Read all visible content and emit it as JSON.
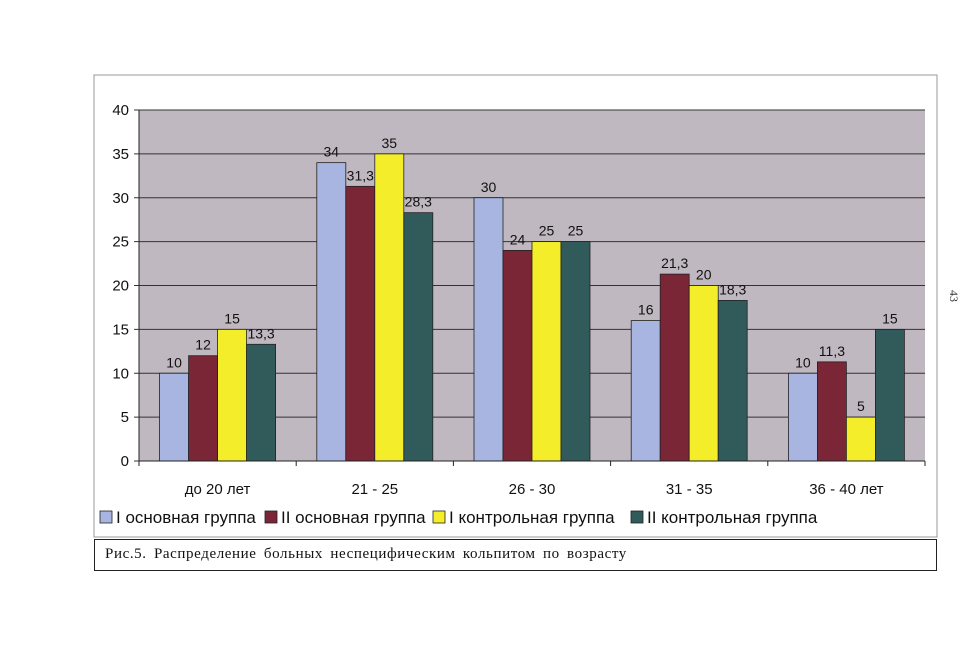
{
  "chart_data": {
    "type": "bar",
    "categories": [
      "до 20 лет",
      "21 - 25",
      "26 - 30",
      "31 - 35",
      "36 - 40 лет"
    ],
    "series": [
      {
        "name": "I основная группа",
        "values": [
          10,
          34,
          30,
          16,
          10
        ],
        "labels": [
          "10",
          "34",
          "30",
          "16",
          "10"
        ],
        "color": "#a7b5e0"
      },
      {
        "name": "II основная группа",
        "values": [
          12,
          31.3,
          24,
          21.3,
          11.3
        ],
        "labels": [
          "12",
          "31,3",
          "24",
          "21,3",
          "11,3"
        ],
        "color": "#7b2636"
      },
      {
        "name": "I контрольная группа",
        "values": [
          15,
          35,
          25,
          20,
          5
        ],
        "labels": [
          "15",
          "35",
          "25",
          "20",
          "5"
        ],
        "color": "#f4ee2a"
      },
      {
        "name": "II контрольная группа",
        "values": [
          13.3,
          28.3,
          25,
          18.3,
          15
        ],
        "labels": [
          "13,3",
          "28,3",
          "25",
          "18,3",
          "15"
        ],
        "color": "#315a5a"
      }
    ],
    "yticks": [
      "0",
      "5",
      "10",
      "15",
      "20",
      "25",
      "30",
      "35",
      "40"
    ],
    "ylim": [
      0,
      40
    ],
    "grid": true,
    "legend_position": "bottom",
    "plot_background": "#c0b8c0"
  },
  "caption": "Рис.5.  Распределение  больных  неспецифическим  кольпитом  по  возрасту",
  "page_number": "43"
}
